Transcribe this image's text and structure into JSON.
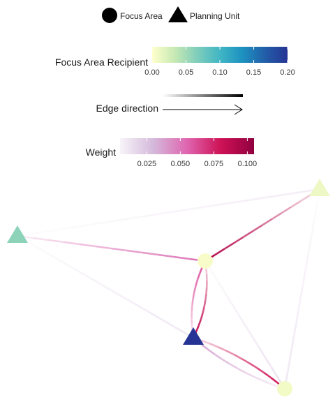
{
  "legend_shape": {
    "items": [
      {
        "label": "Focus Area",
        "shape": "circle"
      },
      {
        "label": "Planning Unit",
        "shape": "triangle"
      }
    ]
  },
  "legend_recipient": {
    "title": "Focus Area Recipient",
    "ticks": [
      "0.00",
      "0.05",
      "0.10",
      "0.15",
      "0.20"
    ],
    "tick_values": [
      0,
      0.05,
      0.1,
      0.15,
      0.2
    ],
    "range": [
      0,
      0.2
    ],
    "colors": [
      "#ffffcc",
      "#c7e9b4",
      "#7fcdbb",
      "#41b6c4",
      "#1d91c0",
      "#225ea8",
      "#253494"
    ]
  },
  "legend_edge": {
    "title": "Edge direction"
  },
  "legend_weight": {
    "title": "Weight",
    "ticks": [
      "0.025",
      "0.050",
      "0.075",
      "0.100"
    ],
    "tick_values": [
      0.025,
      0.05,
      0.075,
      0.1
    ],
    "range": [
      0.005,
      0.105
    ],
    "colors": [
      "#f7f4f9",
      "#d4b9da",
      "#df65b0",
      "#ce1256",
      "#91003f"
    ]
  },
  "graph": {
    "nodes": [
      {
        "id": "n1",
        "shape": "triangle",
        "value": 0.06
      },
      {
        "id": "n2",
        "shape": "triangle",
        "value": 0.01
      },
      {
        "id": "n3",
        "shape": "circle",
        "value": 0.005
      },
      {
        "id": "n4",
        "shape": "triangle",
        "value": 0.2
      },
      {
        "id": "n5",
        "shape": "circle",
        "value": 0.008
      }
    ],
    "edges": [
      {
        "from": "n1",
        "to": "n3",
        "weight": 0.05,
        "curve": 0
      },
      {
        "from": "n1",
        "to": "n2",
        "weight": 0.008,
        "curve": 0
      },
      {
        "from": "n1",
        "to": "n4",
        "weight": 0.01,
        "curve": 0
      },
      {
        "from": "n2",
        "to": "n3",
        "weight": 0.09,
        "curve": 0
      },
      {
        "from": "n2",
        "to": "n5",
        "weight": 0.01,
        "curve": 0
      },
      {
        "from": "n3",
        "to": "n4",
        "weight": 0.085,
        "curve": 0.16
      },
      {
        "from": "n4",
        "to": "n3",
        "weight": 0.06,
        "curve": 0.16
      },
      {
        "from": "n3",
        "to": "n5",
        "weight": 0.012,
        "curve": 0
      },
      {
        "from": "n4",
        "to": "n5",
        "weight": 0.08,
        "curve": 0.1
      },
      {
        "from": "n5",
        "to": "n4",
        "weight": 0.035,
        "curve": 0.1
      }
    ]
  }
}
